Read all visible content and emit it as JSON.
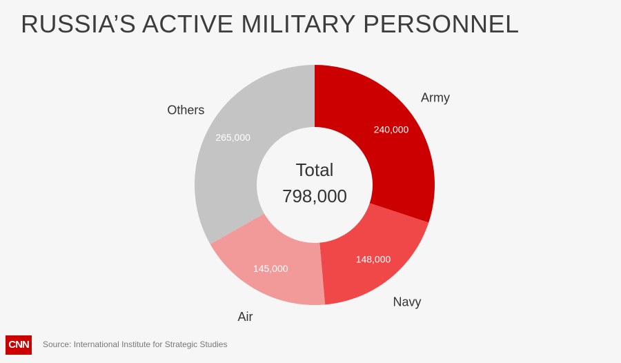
{
  "title": "RUSSIA’S ACTIVE MILITARY PERSONNEL",
  "source": "Source: International Institute for Strategic Studies",
  "logo": "CNN",
  "colors": {
    "army": "#cc0000",
    "navy": "#f04848",
    "air": "#f29a9a",
    "others": "#c4c4c4"
  },
  "chart_data": {
    "type": "pie",
    "donut": true,
    "center_label": [
      "Total",
      "798,000"
    ],
    "total": 798000,
    "slices": [
      {
        "label": "Army",
        "value": 240000,
        "value_label": "240,000"
      },
      {
        "label": "Navy",
        "value": 148000,
        "value_label": "148,000"
      },
      {
        "label": "Air",
        "value": 145000,
        "value_label": "145,000"
      },
      {
        "label": "Others",
        "value": 265000,
        "value_label": "265,000"
      }
    ]
  }
}
